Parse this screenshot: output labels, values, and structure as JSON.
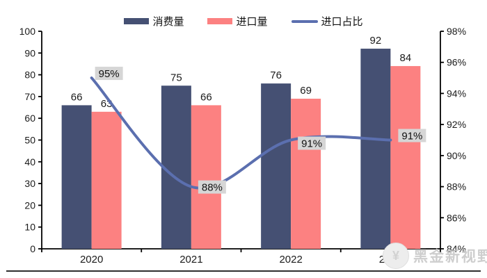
{
  "chart_data": {
    "type": "bar",
    "title": "",
    "categories": [
      "2020",
      "2021",
      "2022",
      "2023"
    ],
    "series": [
      {
        "name": "消费量",
        "type": "bar",
        "axis": "left",
        "color": "#455073",
        "values": [
          66,
          75,
          76,
          92
        ]
      },
      {
        "name": "进口量",
        "type": "bar",
        "axis": "left",
        "color": "#FC8181",
        "values": [
          63,
          66,
          69,
          84
        ]
      },
      {
        "name": "进口占比",
        "type": "line",
        "axis": "right",
        "color": "#5B6FAF",
        "values": [
          95,
          88,
          91,
          91
        ],
        "point_labels": [
          "95%",
          "88%",
          "91%",
          "91%"
        ]
      }
    ],
    "left_axis": {
      "min": 0,
      "max": 100,
      "step": 10,
      "tick_labels": [
        "0",
        "10",
        "20",
        "30",
        "40",
        "50",
        "60",
        "70",
        "80",
        "90",
        "100"
      ]
    },
    "right_axis": {
      "min": 84,
      "max": 98,
      "step": 2,
      "tick_labels": [
        "84%",
        "86%",
        "88%",
        "90%",
        "92%",
        "94%",
        "96%",
        "98%"
      ]
    },
    "legend_position": "top",
    "grid": false,
    "point_label_bg": "#D6D6D6",
    "axis_color": "#000000",
    "text_color": "#1a1a1a"
  },
  "watermark": {
    "text": "黑金新视野",
    "logo_glyph": "¥"
  }
}
